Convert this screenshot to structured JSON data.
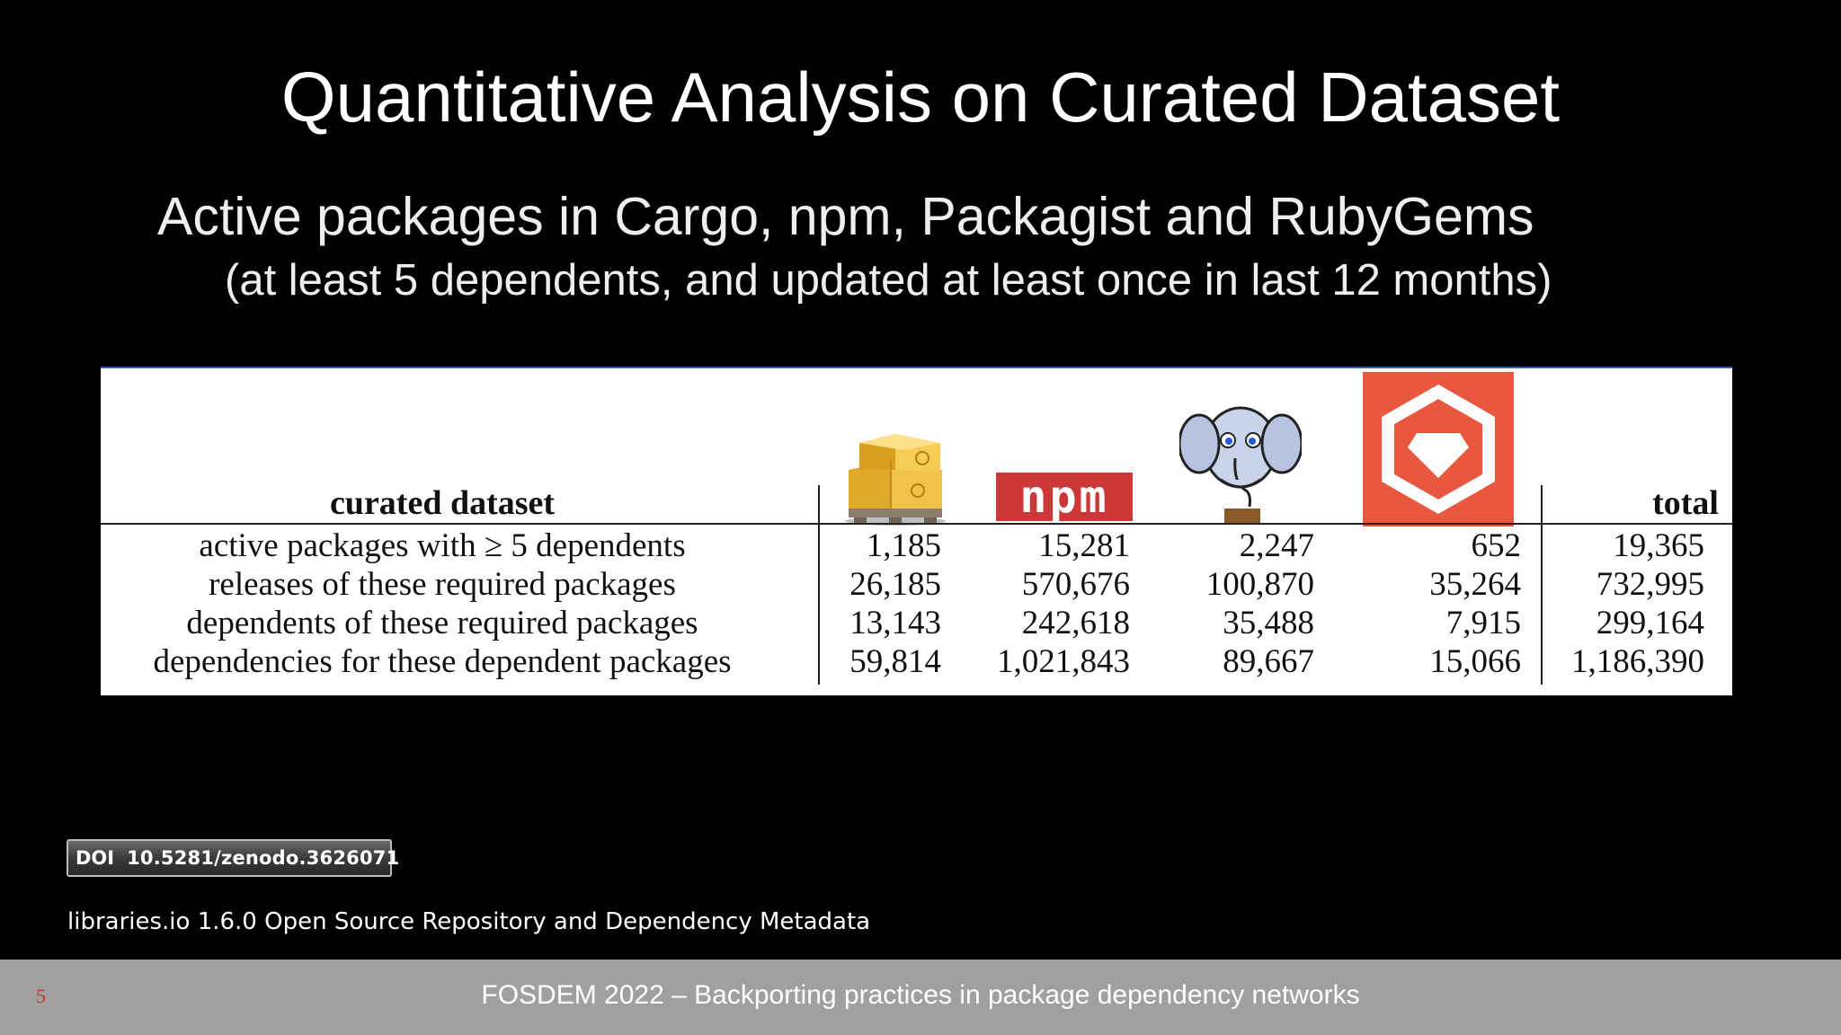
{
  "slide": {
    "title": "Quantitative Analysis on Curated Dataset",
    "subtitle": "Active packages in Cargo, npm, Packagist and RubyGems",
    "subtitle_note": "(at least 5 dependents, and updated at least once in last 12 months)"
  },
  "table": {
    "header_label": "curated dataset",
    "total_header": "total",
    "ecosystems": [
      {
        "icon": "cargo-crates-icon"
      },
      {
        "icon": "npm-logo-icon",
        "text": "npm"
      },
      {
        "icon": "packagist-elephant-icon"
      },
      {
        "icon": "rubygems-logo-icon"
      }
    ],
    "rows": [
      {
        "label": "active packages with ≥ 5 dependents",
        "values": [
          "1,185",
          "15,281",
          "2,247",
          "652"
        ],
        "total": "19,365"
      },
      {
        "label": "releases of these required packages",
        "values": [
          "26,185",
          "570,676",
          "100,870",
          "35,264"
        ],
        "total": "732,995"
      },
      {
        "label": "dependents of these required packages",
        "values": [
          "13,143",
          "242,618",
          "35,488",
          "7,915"
        ],
        "total": "299,164"
      },
      {
        "label": "dependencies for these dependent packages",
        "values": [
          "59,814",
          "1,021,843",
          "89,667",
          "15,066"
        ],
        "total": "1,186,390"
      }
    ]
  },
  "doi": {
    "label": "DOI",
    "value": "10.5281/zenodo.3626071"
  },
  "source": "libraries.io 1.6.0 Open Source Repository and Dependency Metadata",
  "footer": {
    "text": "FOSDEM 2022 – Backporting practices in package dependency networks",
    "page_number": "5"
  },
  "colors": {
    "background": "#000000",
    "footer_bar": "#a0a0a0",
    "page_number": "#c0392b",
    "npm_red": "#cb3837",
    "rubygems_orange": "#e9573f"
  }
}
